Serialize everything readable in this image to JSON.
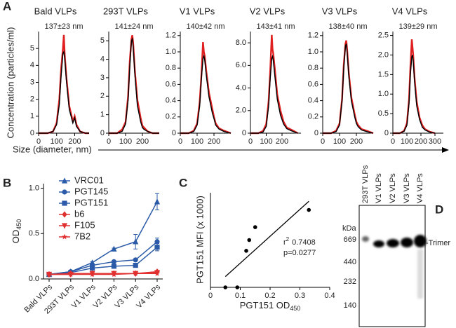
{
  "panel_labels": [
    "A",
    "B",
    "C",
    "D"
  ],
  "shared_ylabel": "Concentration (particles/ml)",
  "shared_xlabel": "Size (diameter, nm)",
  "chart_data": [
    {
      "type": "line",
      "title": "Bald VLPs",
      "subtitle": "137±23 nm",
      "x": [
        0,
        50,
        80,
        100,
        115,
        125,
        135,
        140,
        145,
        155,
        170,
        190,
        200,
        210,
        230,
        260,
        280
      ],
      "series": [
        {
          "color": "#e02020",
          "values": [
            0,
            0,
            0.1,
            0.6,
            2.0,
            3.8,
            5.0,
            5.8,
            4.6,
            3.2,
            1.6,
            0.7,
            1.0,
            0.5,
            0.1,
            0,
            0
          ]
        },
        {
          "color": "#000000",
          "values": [
            0,
            0,
            0.1,
            0.5,
            1.7,
            3.4,
            4.7,
            4.8,
            4.4,
            3.0,
            1.4,
            0.6,
            0.9,
            0.4,
            0.1,
            0,
            0
          ]
        }
      ],
      "xlim": [
        0,
        280
      ],
      "xticks": [
        0,
        100,
        200
      ],
      "ylim": [
        0,
        6
      ],
      "yticks": [
        0,
        1,
        2,
        3,
        4,
        5
      ]
    },
    {
      "type": "line",
      "title": "293T VLPs",
      "subtitle": "141±24 nm",
      "x": [
        0,
        50,
        80,
        100,
        115,
        125,
        135,
        140,
        145,
        155,
        170,
        190,
        200,
        210,
        230,
        260,
        300
      ],
      "series": [
        {
          "color": "#e02020",
          "values": [
            0,
            0,
            0.2,
            0.6,
            2.0,
            3.9,
            5.1,
            5.3,
            4.9,
            3.4,
            1.8,
            0.8,
            0.4,
            0.3,
            0.1,
            0,
            0
          ]
        },
        {
          "color": "#000000",
          "values": [
            0,
            0,
            0.1,
            0.5,
            1.8,
            3.6,
            5.0,
            5.1,
            4.7,
            3.2,
            1.5,
            0.6,
            0.3,
            0.2,
            0.1,
            0,
            0
          ]
        }
      ],
      "xlim": [
        0,
        300
      ],
      "xticks": [
        0,
        100,
        200
      ],
      "ylim": [
        0,
        5.5
      ],
      "yticks": [
        0,
        1,
        2,
        3,
        4,
        5
      ]
    },
    {
      "type": "line",
      "title": "V1 VLPs",
      "subtitle": "140±42 nm",
      "x": [
        0,
        50,
        80,
        100,
        115,
        125,
        135,
        140,
        145,
        155,
        170,
        190,
        200,
        210,
        230,
        260,
        300
      ],
      "series": [
        {
          "color": "#e02020",
          "values": [
            0,
            0,
            0.03,
            0.12,
            0.38,
            0.7,
            1.12,
            1.0,
            0.95,
            0.75,
            0.5,
            0.3,
            0.2,
            0.12,
            0.06,
            0.03,
            0
          ]
        },
        {
          "color": "#000000",
          "values": [
            0,
            0,
            0.02,
            0.1,
            0.33,
            0.66,
            0.92,
            0.95,
            0.9,
            0.7,
            0.45,
            0.25,
            0.18,
            0.1,
            0.05,
            0.02,
            0
          ]
        }
      ],
      "xlim": [
        0,
        300
      ],
      "xticks": [
        0,
        100,
        200
      ],
      "ylim": [
        0,
        1.25
      ],
      "yticks": [
        0,
        0.2,
        0.4,
        0.6,
        0.8,
        {
          "value": 1,
          "label": "1.0"
        },
        1.2
      ]
    },
    {
      "type": "line",
      "title": "V2 VLPs",
      "subtitle": "143±41 nm",
      "x": [
        0,
        50,
        80,
        100,
        115,
        125,
        135,
        140,
        145,
        155,
        170,
        190,
        200,
        210,
        230,
        260,
        300
      ],
      "series": [
        {
          "color": "#e02020",
          "values": [
            0,
            0,
            0.2,
            0.8,
            2.8,
            5.4,
            8.7,
            7.4,
            7.0,
            5.6,
            3.4,
            2.0,
            1.5,
            1.0,
            0.5,
            0.3,
            0
          ]
        },
        {
          "color": "#000000",
          "values": [
            0,
            0,
            0.1,
            0.6,
            2.4,
            4.8,
            6.6,
            6.8,
            6.4,
            5.0,
            3.0,
            1.6,
            1.2,
            0.8,
            0.4,
            0.2,
            0
          ]
        }
      ],
      "xlim": [
        0,
        320
      ],
      "xticks": [
        0,
        100,
        200
      ],
      "ylim": [
        0,
        9
      ],
      "yticks": [
        0,
        {
          "value": 2,
          "label": "2.0"
        },
        {
          "value": 4,
          "label": "4.0"
        },
        {
          "value": 6,
          "label": "6.0"
        },
        {
          "value": 8,
          "label": "8.0"
        }
      ]
    },
    {
      "type": "line",
      "title": "V3 VLPs",
      "subtitle": "138±40 nm",
      "x": [
        0,
        50,
        80,
        100,
        115,
        125,
        135,
        140,
        145,
        155,
        170,
        190,
        200,
        210,
        230,
        260,
        300
      ],
      "series": [
        {
          "color": "#e02020",
          "values": [
            0,
            0,
            0.03,
            0.12,
            0.42,
            0.84,
            1.1,
            1.14,
            1.03,
            0.74,
            0.44,
            0.23,
            0.14,
            0.1,
            0.05,
            0.03,
            0
          ]
        },
        {
          "color": "#000000",
          "values": [
            0,
            0,
            0.02,
            0.1,
            0.4,
            0.8,
            1.07,
            1.1,
            1.0,
            0.7,
            0.4,
            0.2,
            0.12,
            0.08,
            0.04,
            0.02,
            0
          ]
        }
      ],
      "xlim": [
        0,
        300
      ],
      "xticks": [
        0,
        100,
        200
      ],
      "ylim": [
        0,
        1.25
      ],
      "yticks": [
        0,
        0.2,
        0.4,
        0.6,
        0.8,
        {
          "value": 1,
          "label": "1.0"
        },
        1.2
      ]
    },
    {
      "type": "line",
      "title": "V4 VLPs",
      "subtitle": "139±29 nm",
      "x": [
        0,
        50,
        80,
        100,
        115,
        125,
        135,
        140,
        145,
        155,
        170,
        190,
        200,
        210,
        230,
        260,
        300
      ],
      "series": [
        {
          "color": "#e02020",
          "values": [
            0,
            0,
            0.06,
            0.25,
            0.85,
            1.7,
            2.4,
            2.2,
            2.0,
            1.4,
            0.8,
            0.4,
            0.3,
            0.2,
            0.1,
            0.04,
            0
          ]
        },
        {
          "color": "#000000",
          "values": [
            0,
            0,
            0.05,
            0.2,
            0.75,
            1.5,
            1.95,
            2.0,
            1.85,
            1.3,
            0.7,
            0.35,
            0.25,
            0.15,
            0.08,
            0.03,
            0
          ]
        }
      ],
      "xlim": [
        0,
        360
      ],
      "xticks": [
        0,
        100,
        200,
        300
      ],
      "ylim": [
        0,
        2.6
      ],
      "yticks": [
        0,
        0.5,
        {
          "value": 1,
          "label": "1.0"
        },
        1.5,
        {
          "value": 2,
          "label": "2.0"
        },
        2.5
      ]
    },
    {
      "type": "line",
      "ylabel": {
        "text": "OD",
        "sub": "450"
      },
      "categories": [
        "Bald VLPs",
        "293T VLPs",
        "V1 VLPs",
        "V2 VLPs",
        "V3 VLPs",
        "V4 VLPs"
      ],
      "ylim": [
        0,
        1.05
      ],
      "yticks": [
        {
          "value": 0,
          "label": "0.0"
        },
        0.5,
        {
          "value": 1,
          "label": "1.0"
        }
      ],
      "series": [
        {
          "name": "VRC01",
          "color": "#2b5ba8",
          "marker": "triangle",
          "values": [
            0.05,
            0.08,
            0.18,
            0.33,
            0.41,
            0.85
          ],
          "errors": [
            0,
            0.01,
            0.01,
            0.01,
            0.08,
            0.09
          ]
        },
        {
          "name": "PGT145",
          "color": "#2b5ba8",
          "marker": "circle",
          "values": [
            0.05,
            0.08,
            0.15,
            0.19,
            0.21,
            0.41
          ],
          "errors": [
            0,
            0.01,
            0.01,
            0.01,
            0.01,
            0.04
          ]
        },
        {
          "name": "PGT151",
          "color": "#2b5ba8",
          "marker": "square",
          "values": [
            0.05,
            0.07,
            0.12,
            0.14,
            0.15,
            0.35
          ],
          "errors": [
            0,
            0.01,
            0.01,
            0.01,
            0.01,
            0.04
          ]
        },
        {
          "name": "b6",
          "color": "#e03030",
          "marker": "diamond",
          "values": [
            0.05,
            0.06,
            0.06,
            0.06,
            0.06,
            0.08
          ]
        },
        {
          "name": "F105",
          "color": "#e03030",
          "marker": "triangle-down",
          "values": [
            0.05,
            0.05,
            0.06,
            0.06,
            0.06,
            0.07
          ]
        },
        {
          "name": "7B2",
          "color": "#e03030",
          "marker": "star",
          "values": [
            0.05,
            0.05,
            0.05,
            0.05,
            0.06,
            0.06
          ]
        }
      ]
    },
    {
      "type": "scatter",
      "xlabel": {
        "text": "PGT151 OD",
        "sub": "450"
      },
      "ylabel": "PGT151 MFI (x 1000)",
      "x": [
        0.05,
        0.09,
        0.12,
        0.13,
        0.15,
        0.33
      ],
      "y": [
        0,
        0,
        8.5,
        11,
        14,
        18
      ],
      "color": "#000000",
      "xlim": [
        0,
        0.4
      ],
      "xticks": [
        0,
        0.1,
        0.2,
        0.3,
        0.4
      ],
      "ylim": [
        0,
        22
      ],
      "fit": {
        "x": [
          0.05,
          0.33
        ],
        "y": [
          2.5,
          20
        ]
      },
      "annotations": {
        "r2_base": "r",
        "r2_sup": "2",
        "r2_value": "0.7408",
        "p": "p=0.0277"
      }
    }
  ],
  "blot": {
    "lanes": [
      "293T VLPs",
      "V1 VLPs",
      "V2 VLPs",
      "V3 VLPs",
      "V4 VLPs"
    ],
    "unit": "kDa",
    "markers": [
      "669",
      "440",
      "232",
      "140"
    ],
    "band_label": "-Trimer"
  }
}
